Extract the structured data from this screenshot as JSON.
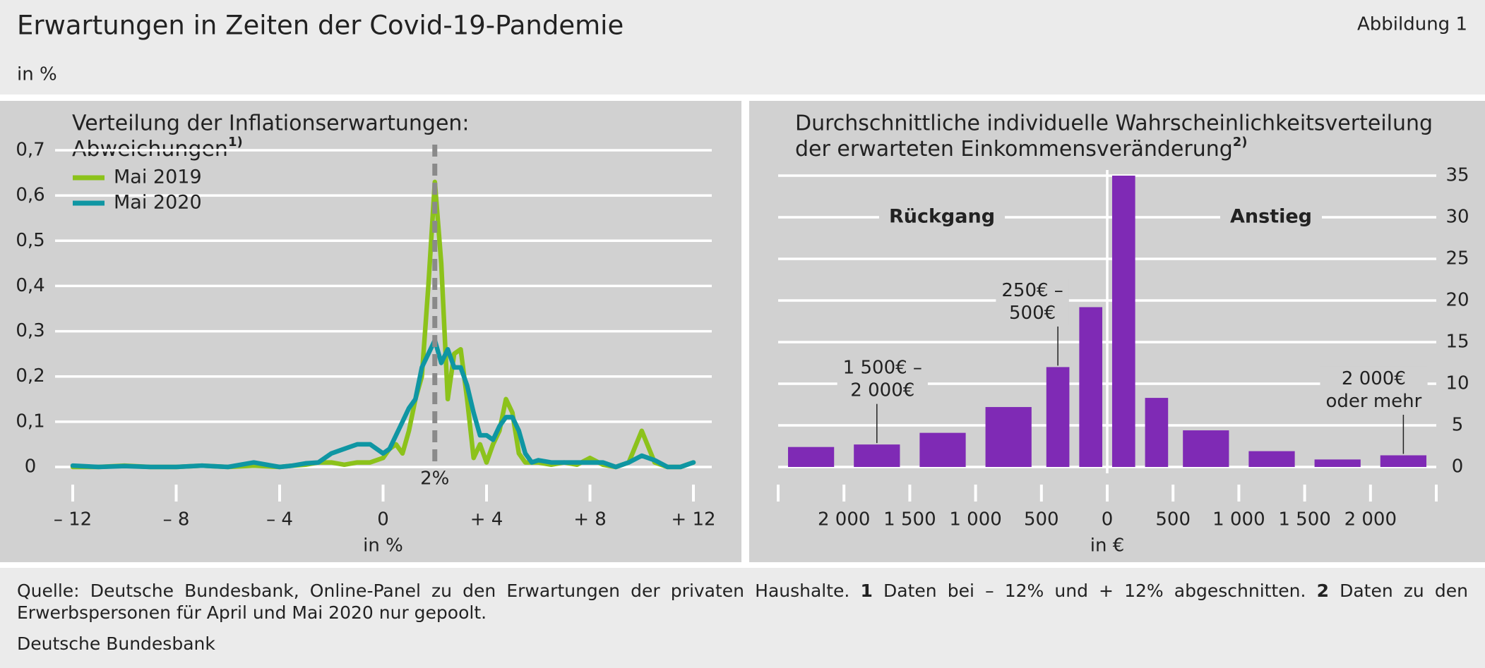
{
  "header": {
    "title": "Erwartungen in Zeiten der Covid-19-Pandemie",
    "figure_label": "Abbildung 1",
    "unit": "in %"
  },
  "chart_data": [
    {
      "type": "line",
      "title": [
        "Verteilung der Inflationserwartungen:",
        "Abweichungen"
      ],
      "title_note": "1)",
      "x_label": "in %",
      "x": [
        -12,
        -11,
        -10,
        -9,
        -8,
        -7,
        -6,
        -5,
        -4,
        -3.5,
        -3,
        -2.5,
        -2,
        -1.5,
        -1,
        -0.5,
        0,
        0.25,
        0.5,
        0.75,
        1,
        1.25,
        1.5,
        1.75,
        2,
        2.25,
        2.5,
        2.75,
        3,
        3.25,
        3.5,
        3.75,
        4,
        4.25,
        4.5,
        4.75,
        5,
        5.25,
        5.5,
        5.75,
        6,
        6.5,
        7,
        7.5,
        8,
        8.5,
        9,
        9.5,
        10,
        10.5,
        11,
        11.5,
        12
      ],
      "series": [
        {
          "name": "Mai 2019",
          "color": "#8cc21b",
          "values": [
            0,
            0,
            0.003,
            0,
            0,
            0.003,
            0,
            0.003,
            0,
            0.003,
            0.005,
            0.01,
            0.01,
            0.005,
            0.01,
            0.01,
            0.02,
            0.04,
            0.05,
            0.03,
            0.08,
            0.15,
            0.2,
            0.4,
            0.63,
            0.45,
            0.15,
            0.25,
            0.26,
            0.15,
            0.02,
            0.05,
            0.01,
            0.05,
            0.08,
            0.15,
            0.12,
            0.03,
            0.01,
            0.01,
            0.01,
            0.005,
            0.01,
            0.005,
            0.02,
            0.005,
            0,
            0.01,
            0.08,
            0.01,
            0,
            0,
            0.01
          ]
        },
        {
          "name": "Mai 2020",
          "color": "#0f96a3",
          "values": [
            0.003,
            0,
            0.002,
            0,
            0,
            0.003,
            0,
            0.01,
            0,
            0.003,
            0.008,
            0.01,
            0.03,
            0.04,
            0.05,
            0.05,
            0.03,
            0.04,
            0.07,
            0.1,
            0.13,
            0.15,
            0.22,
            0.25,
            0.28,
            0.23,
            0.26,
            0.22,
            0.22,
            0.18,
            0.12,
            0.07,
            0.07,
            0.06,
            0.09,
            0.11,
            0.11,
            0.08,
            0.03,
            0.01,
            0.015,
            0.01,
            0.01,
            0.01,
            0.01,
            0.01,
            0,
            0.01,
            0.025,
            0.015,
            0,
            0,
            0.01
          ]
        }
      ],
      "reference_line": {
        "x": 2,
        "label": "2%"
      },
      "xlim": [
        -12,
        12
      ],
      "xticks": [
        {
          "value": -12,
          "label": "– 12"
        },
        {
          "value": -8,
          "label": "– 8"
        },
        {
          "value": -4,
          "label": "– 4"
        },
        0,
        {
          "value": 4,
          "label": "+ 4"
        },
        {
          "value": 8,
          "label": "+ 8"
        },
        {
          "value": 12,
          "label": "+ 12"
        }
      ],
      "ylim": [
        0,
        0.7
      ],
      "yticks": [
        0,
        {
          "value": 0.1,
          "label": "0,1"
        },
        {
          "value": 0.2,
          "label": "0,2"
        },
        {
          "value": 0.3,
          "label": "0,3"
        },
        {
          "value": 0.4,
          "label": "0,4"
        },
        {
          "value": 0.5,
          "label": "0,5"
        },
        {
          "value": 0.6,
          "label": "0,6"
        },
        {
          "value": 0.7,
          "label": "0,7"
        }
      ],
      "y_axis_position": "left",
      "grid": true,
      "legend": "top-left"
    },
    {
      "type": "histogram",
      "title": [
        "Durchschnittliche individuelle Wahrscheinlichkeitsverteilung",
        "der erwarteten Einkommensveränderung"
      ],
      "title_note": "2)",
      "x_label": "in €",
      "bins": [
        -2500,
        -2000,
        -1500,
        -1000,
        -500,
        -250,
        0,
        250,
        500,
        1000,
        1500,
        2000,
        2500
      ],
      "values": [
        2.4,
        2.7,
        4.1,
        7.2,
        12.0,
        19.2,
        35,
        8.3,
        4.4,
        1.9,
        0.9,
        1.4
      ],
      "color": "#7f2ab5",
      "bin_labels": [
        null,
        [
          "1 500€ –",
          "2 000€"
        ],
        null,
        null,
        [
          "250€ –",
          "500€"
        ],
        null,
        null,
        null,
        null,
        null,
        null,
        [
          "2 000€",
          "oder mehr"
        ]
      ],
      "region_labels": [
        "Rückgang",
        "Anstieg"
      ],
      "xlim": [
        -2500,
        2500
      ],
      "xticks": [
        {
          "value": -2000,
          "label": "2 000"
        },
        {
          "value": -1500,
          "label": "1 500"
        },
        {
          "value": -1000,
          "label": "1 000"
        },
        {
          "value": -500,
          "label": "500"
        },
        0,
        500,
        {
          "value": 1000,
          "label": "1 000"
        },
        {
          "value": 1500,
          "label": "1 500"
        },
        {
          "value": 2000,
          "label": "2 000"
        }
      ],
      "ylim": [
        0,
        35
      ],
      "yticks": [
        0,
        5,
        10,
        15,
        20,
        25,
        30,
        35
      ],
      "y_axis_position": "right",
      "grid": true
    }
  ],
  "footer": {
    "source": "Quelle: Deutsche Bundesbank, Online-Panel zu den Erwartungen der privaten Haushalte.",
    "notes": [
      {
        "number": "1",
        "text": "Daten bei – 12% und + 12% abgeschnitten."
      },
      {
        "number": "2",
        "text": "Daten zu den Erwerbspersonen für April und Mai 2020 nur gepoolt."
      }
    ],
    "publisher": "Deutsche Bundesbank"
  }
}
